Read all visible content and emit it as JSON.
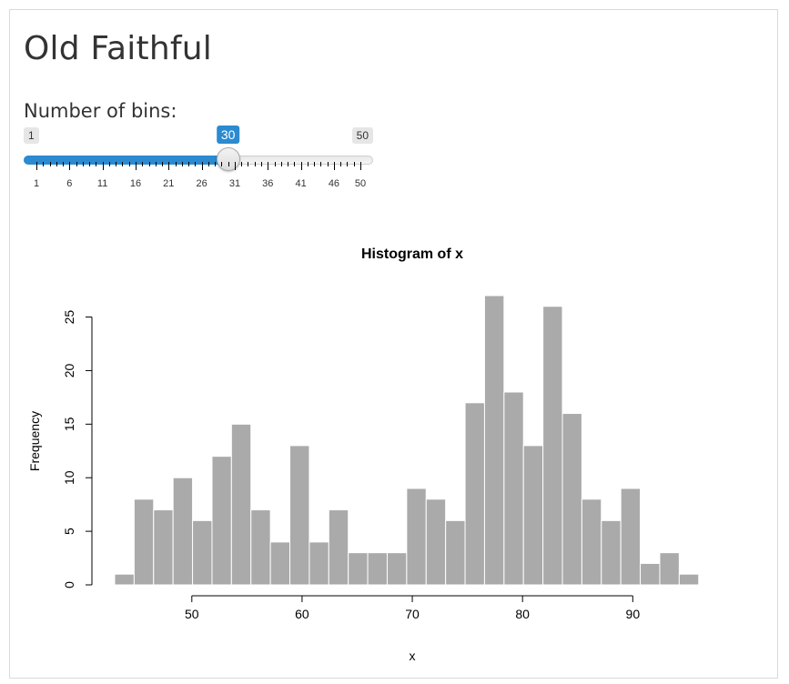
{
  "app": {
    "title": "Old Faithful"
  },
  "bins_input": {
    "label": "Number of bins:",
    "min": 1,
    "max": 50,
    "value": 30,
    "min_label": "1",
    "max_label": "50",
    "value_label": "30",
    "accent_color": "#2b8ad0",
    "tick_labels": [
      "1",
      "6",
      "11",
      "16",
      "21",
      "26",
      "31",
      "36",
      "41",
      "46",
      "50"
    ]
  },
  "chart_data": {
    "type": "bar",
    "title": "Histogram of x",
    "xlabel": "x",
    "ylabel": "Frequency",
    "bar_color": "#aaaaaa",
    "bar_border_color": "#ffffff",
    "xlim": [
      43,
      96
    ],
    "ylim": [
      0,
      27
    ],
    "bin_width": 1.766,
    "bin_start": 43,
    "values": [
      1,
      8,
      7,
      10,
      6,
      12,
      15,
      7,
      4,
      13,
      4,
      7,
      3,
      3,
      3,
      9,
      8,
      6,
      17,
      27,
      18,
      13,
      26,
      16,
      8,
      6,
      9,
      2,
      3,
      1
    ],
    "x_ticks": [
      50,
      60,
      70,
      80,
      90
    ],
    "y_ticks": [
      0,
      5,
      10,
      15,
      20,
      25
    ]
  }
}
